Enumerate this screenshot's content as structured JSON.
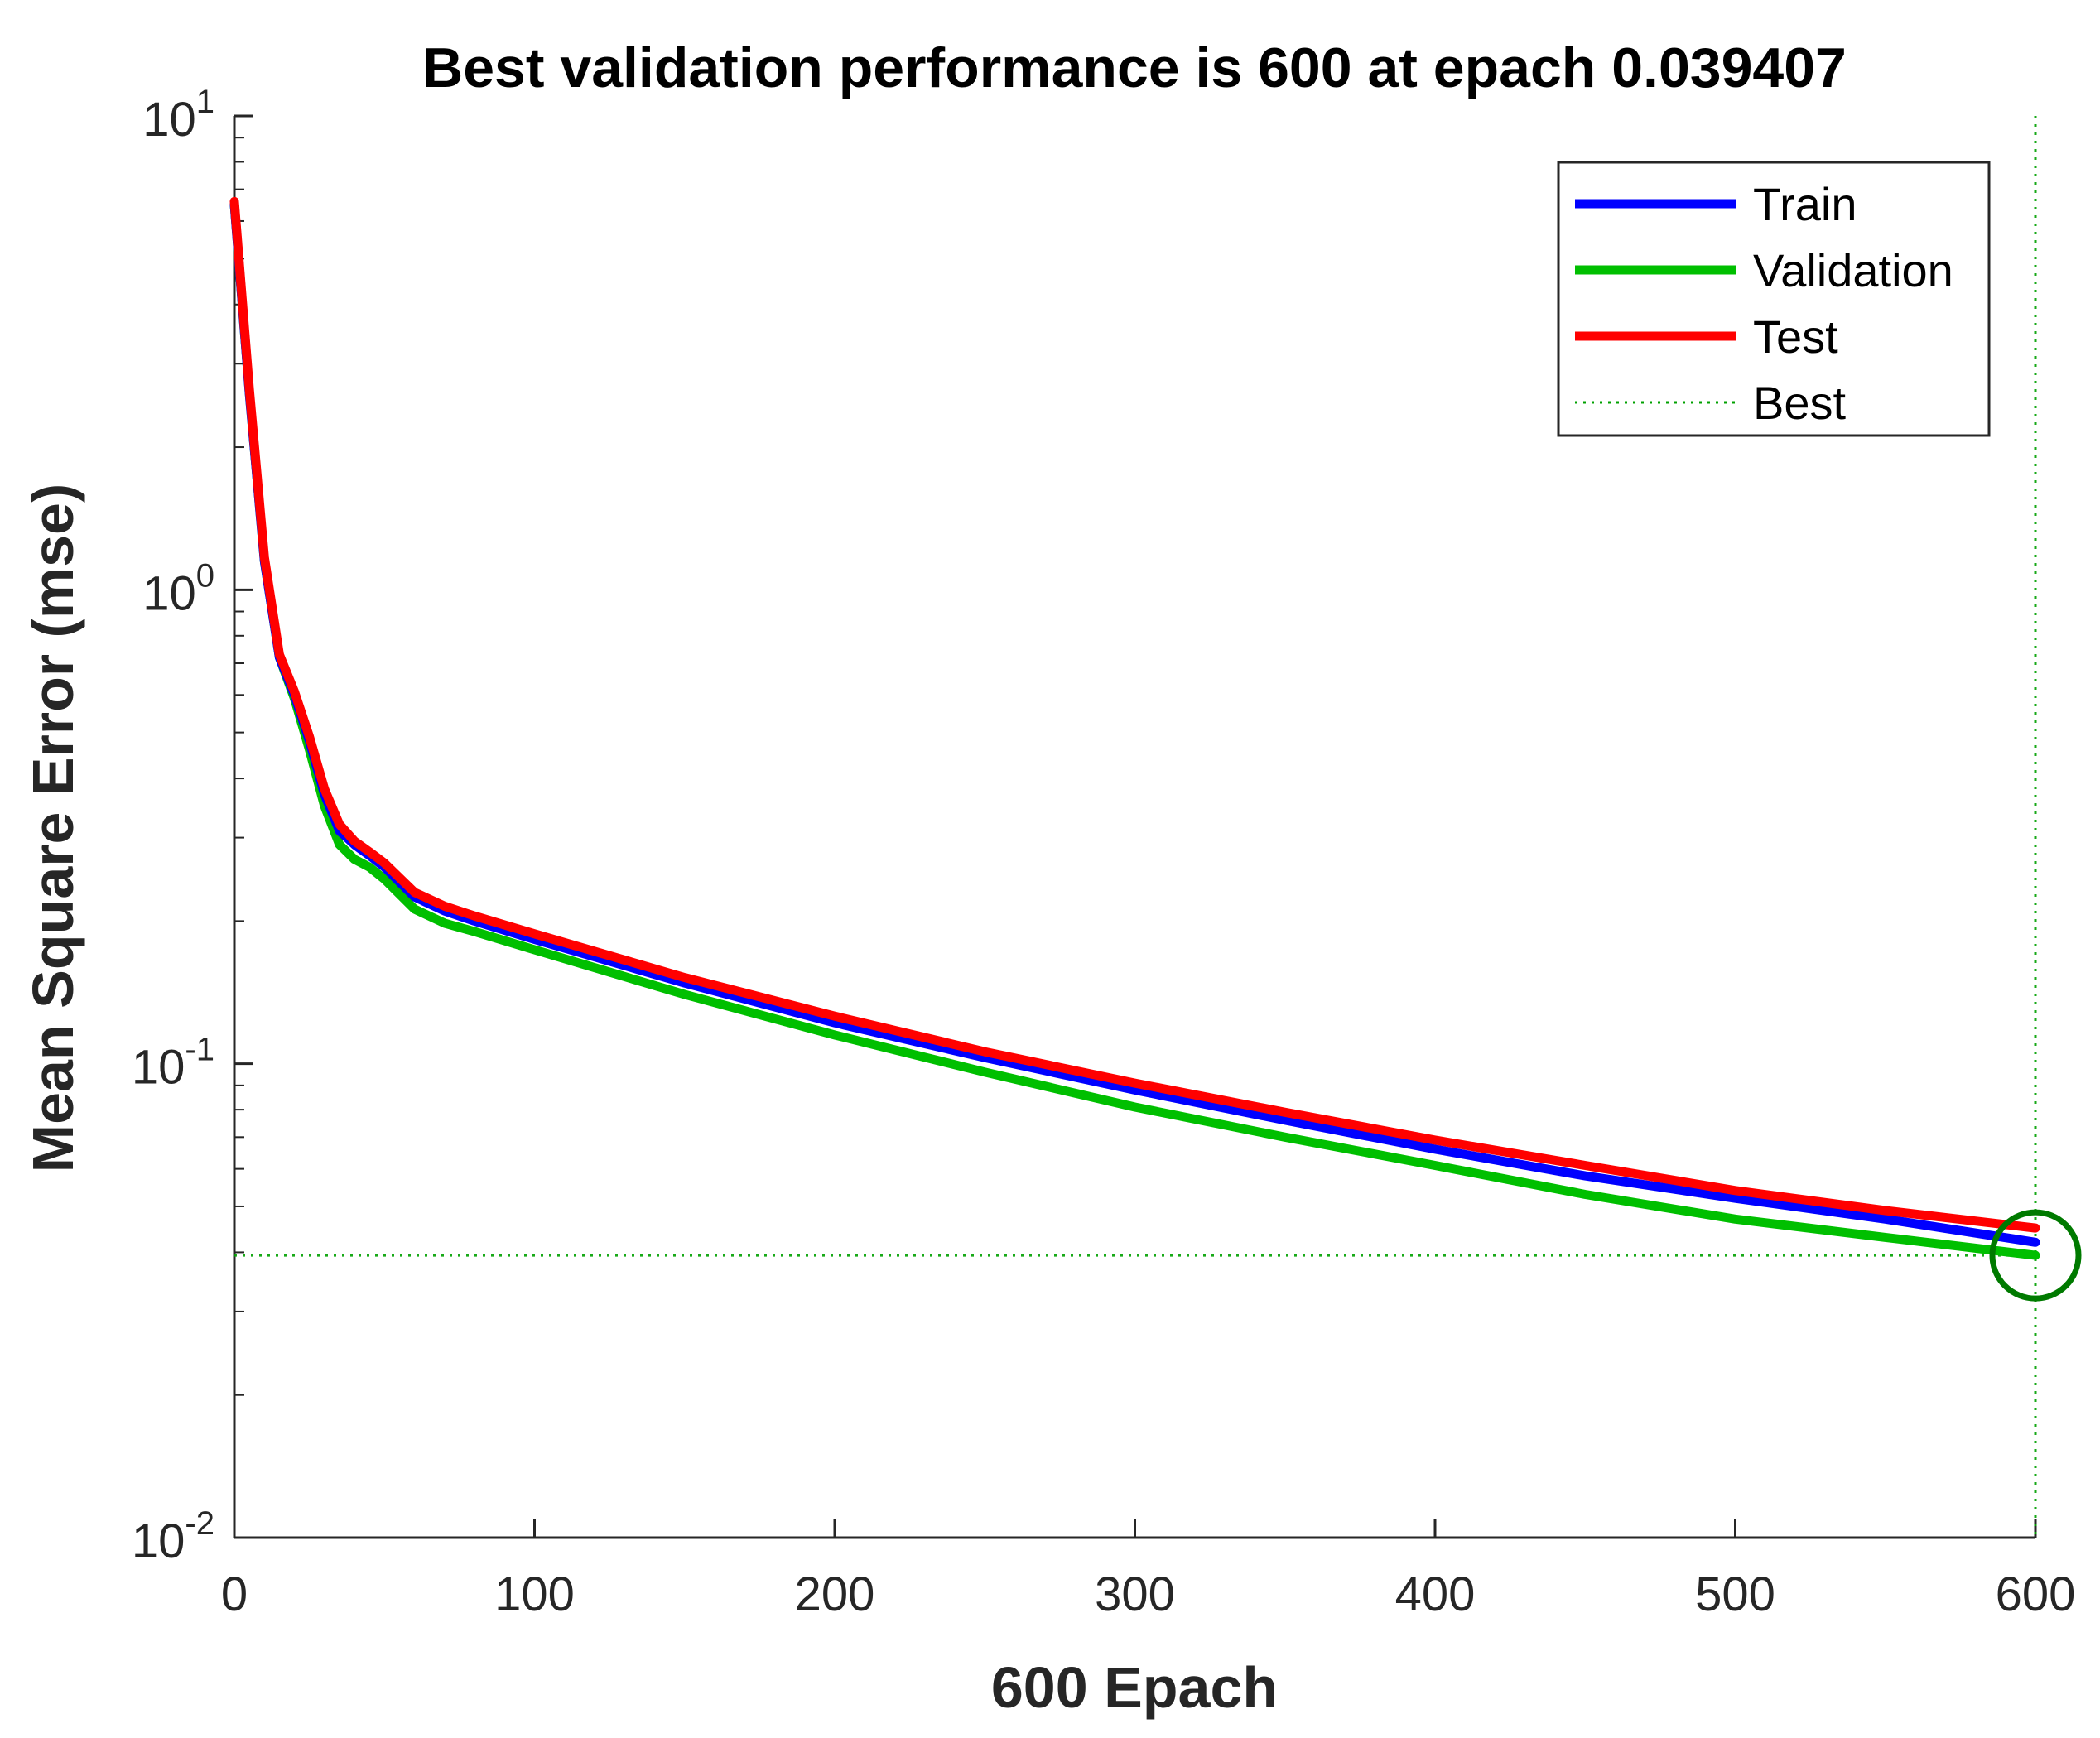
{
  "chart_data": {
    "type": "line",
    "title": "Best validation performance is 600 at epach 0.039407",
    "xlabel": "600 Epach",
    "ylabel": "Mean Square Error (mse)",
    "y_scale": "log",
    "xlim": [
      0,
      600
    ],
    "ylim": [
      0.01,
      10
    ],
    "x_ticks": [
      0,
      100,
      200,
      300,
      400,
      500,
      600
    ],
    "x_tick_labels": [
      "0",
      "100",
      "200",
      "300",
      "400",
      "500",
      "600"
    ],
    "y_ticks": [
      {
        "value": 0.01,
        "base": "10",
        "exp": "-2"
      },
      {
        "value": 0.1,
        "base": "10",
        "exp": "-1"
      },
      {
        "value": 1,
        "base": "10",
        "exp": "0"
      },
      {
        "value": 10,
        "base": "10",
        "exp": "1"
      }
    ],
    "grid": false,
    "legend_position": "top-right",
    "x": [
      0,
      5,
      10,
      15,
      20,
      25,
      30,
      35,
      40,
      45,
      50,
      60,
      70,
      80,
      100,
      150,
      200,
      250,
      300,
      350,
      400,
      450,
      500,
      550,
      600
    ],
    "series": [
      {
        "name": "Train",
        "color": "#0000ff",
        "values": [
          6.5,
          2.6,
          1.15,
          0.72,
          0.6,
          0.48,
          0.37,
          0.31,
          0.29,
          0.275,
          0.26,
          0.225,
          0.21,
          0.2,
          0.183,
          0.148,
          0.122,
          0.103,
          0.088,
          0.076,
          0.066,
          0.058,
          0.052,
          0.047,
          0.042
        ]
      },
      {
        "name": "Validation",
        "color": "#00bf00",
        "values": [
          6.5,
          2.6,
          1.15,
          0.72,
          0.59,
          0.46,
          0.35,
          0.29,
          0.27,
          0.26,
          0.245,
          0.212,
          0.198,
          0.19,
          0.174,
          0.14,
          0.115,
          0.096,
          0.081,
          0.07,
          0.061,
          0.053,
          0.047,
          0.043,
          0.039407
        ]
      },
      {
        "name": "Test",
        "color": "#ff0000",
        "values": [
          6.6,
          2.65,
          1.17,
          0.73,
          0.61,
          0.49,
          0.38,
          0.32,
          0.295,
          0.28,
          0.265,
          0.23,
          0.215,
          0.205,
          0.188,
          0.152,
          0.126,
          0.106,
          0.091,
          0.079,
          0.069,
          0.061,
          0.054,
          0.049,
          0.045
        ]
      }
    ],
    "best": {
      "name": "Best",
      "epoch": 600,
      "value": 0.039407,
      "color": "#00a000"
    }
  }
}
